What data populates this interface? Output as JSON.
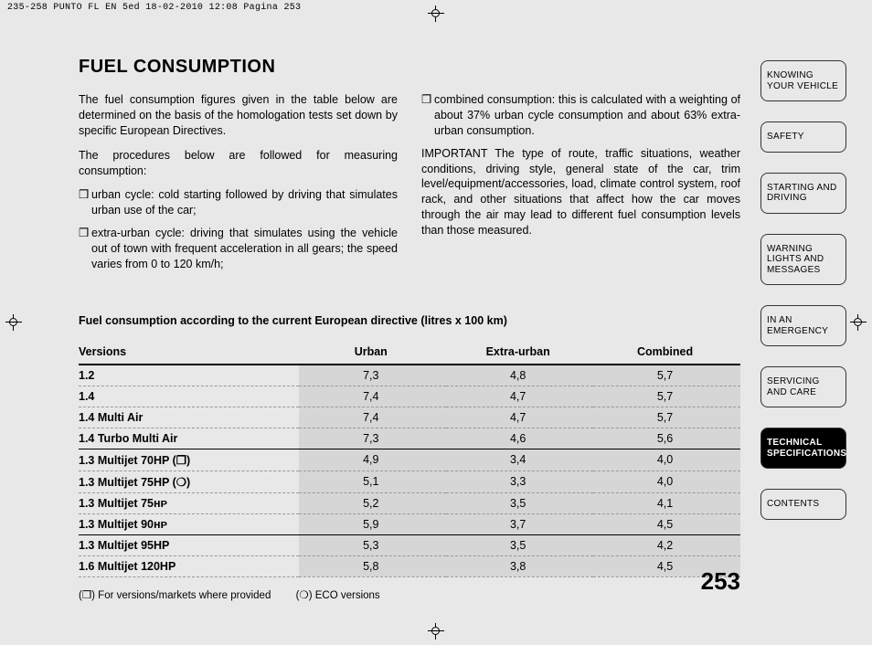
{
  "crop_header": "235-258 PUNTO FL EN 5ed  18-02-2010  12:08  Pagina 253",
  "title": "FUEL CONSUMPTION",
  "col1": {
    "p1": "The fuel consumption figures given in the table below are determined on the basis of the homologation tests set down by specific European Directives.",
    "p2": "The procedures below are followed for measuring consumption:",
    "li1": "urban cycle: cold starting followed by driving that simulates urban use of the car;",
    "li2": "extra-urban cycle: driving that simulates using the vehicle out of town with frequent acceleration in all gears; the speed varies from 0 to 120 km/h;"
  },
  "col2": {
    "li1": "combined consumption: this is calculated with a weighting of about 37% urban cycle consumption and about 63% extra-urban consumption.",
    "p1": "IMPORTANT The type of route, traffic situations, weather conditions, driving style, general state of the car, trim level/equipment/accessories, load, climate control system, roof rack, and other situations that affect how the car moves through the air may lead to different fuel consumption levels than those measured."
  },
  "table": {
    "title": "Fuel consumption according to the current European directive (litres x 100 km)",
    "headers": {
      "c0": "Versions",
      "c1": "Urban",
      "c2": "Extra-urban",
      "c3": "Combined"
    },
    "rows": [
      {
        "v": "1.2",
        "u": "7,3",
        "e": "4,8",
        "c": "5,7",
        "sep": false
      },
      {
        "v": "1.4",
        "u": "7,4",
        "e": "4,7",
        "c": "5,7",
        "sep": false
      },
      {
        "v": "1.4 Multi Air",
        "u": "7,4",
        "e": "4,7",
        "c": "5,7",
        "sep": false
      },
      {
        "v": "1.4 Turbo Multi Air",
        "u": "7,3",
        "e": "4,6",
        "c": "5,6",
        "sep": true
      },
      {
        "v": "1.3 Multijet 70HP (❒)",
        "u": "4,9",
        "e": "3,4",
        "c": "4,0",
        "sep": false
      },
      {
        "v": "1.3 Multijet 75HP (❍)",
        "u": "5,1",
        "e": "3,3",
        "c": "4,0",
        "sep": false
      },
      {
        "v": "1.3 Multijet 75ʜᴘ",
        "u": "5,2",
        "e": "3,5",
        "c": "4,1",
        "sep": false
      },
      {
        "v": "1.3 Multijet 90ʜᴘ",
        "u": "5,9",
        "e": "3,7",
        "c": "4,5",
        "sep": true
      },
      {
        "v": "1.3 Multijet 95HP",
        "u": "5,3",
        "e": "3,5",
        "c": "4,2",
        "sep": false
      },
      {
        "v": "1.6 Multijet 120HP",
        "u": "5,8",
        "e": "3,8",
        "c": "4,5",
        "sep": false
      }
    ]
  },
  "footnotes": {
    "f1": "(❒) For versions/markets where provided",
    "f2": "(❍) ECO versions"
  },
  "pagenum": "253",
  "tabs": {
    "t1": "KNOWING YOUR VEHICLE",
    "t2": "SAFETY",
    "t3": "STARTING AND DRIVING",
    "t4": "WARNING LIGHTS AND MESSAGES",
    "t5": "IN AN EMERGENCY",
    "t6": "SERVICING AND CARE",
    "t7": "TECHNICAL SPECIFICATIONS",
    "t8": "CONTENTS"
  }
}
